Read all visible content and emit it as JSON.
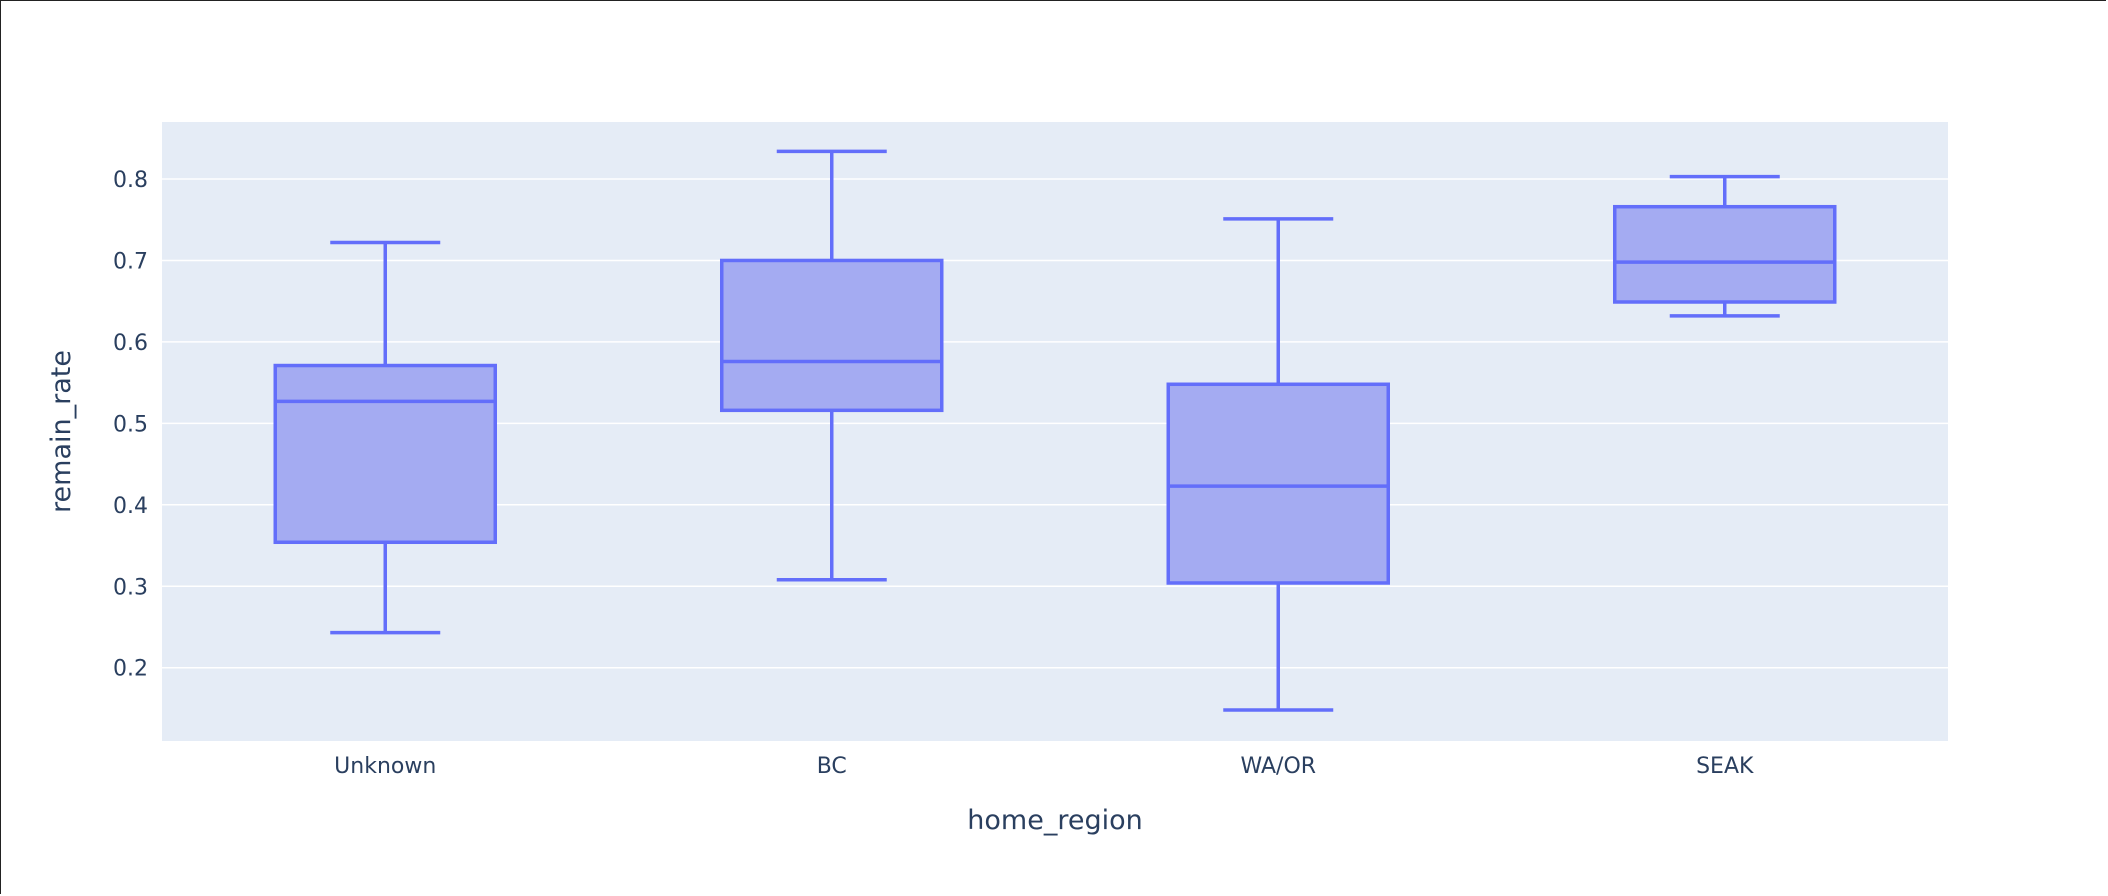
{
  "chart_data": {
    "type": "box",
    "xlabel": "home_region",
    "ylabel": "remain_rate",
    "ylim": [
      0.11,
      0.87
    ],
    "yticks": [
      "0.2",
      "0.3",
      "0.4",
      "0.5",
      "0.6",
      "0.7",
      "0.8"
    ],
    "grid": true,
    "categories": [
      "Unknown",
      "BC",
      "WA/OR",
      "SEAK"
    ],
    "boxes": [
      {
        "category": "Unknown",
        "min": 0.243,
        "q1": 0.354,
        "median": 0.527,
        "q3": 0.571,
        "max": 0.722
      },
      {
        "category": "BC",
        "min": 0.308,
        "q1": 0.516,
        "median": 0.576,
        "q3": 0.7,
        "max": 0.834
      },
      {
        "category": "WA/OR",
        "min": 0.148,
        "q1": 0.304,
        "median": 0.423,
        "q3": 0.548,
        "max": 0.751
      },
      {
        "category": "SEAK",
        "min": 0.632,
        "q1": 0.649,
        "median": 0.698,
        "q3": 0.766,
        "max": 0.803
      }
    ],
    "colors": {
      "box_line": "#636efa",
      "box_fill": "#a4abf2",
      "plot_bg": "#e5ecf6",
      "grid": "#ffffff",
      "text": "#2a3f5f"
    }
  }
}
